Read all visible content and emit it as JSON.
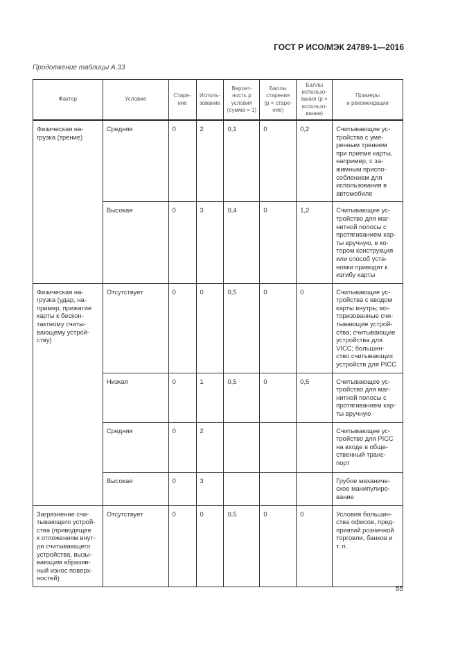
{
  "header": {
    "doc_code": "ГОСТ Р ИСО/МЭК 24789-1—2016"
  },
  "caption": "Продолжение таблицы А.33",
  "table": {
    "columns": [
      "Фактор",
      "Условие",
      "Старе-\nние",
      "Исполь-\nзование",
      "Вероят-\nность p\nусловия\n(сумма = 1)",
      "Баллы\nстарения\n(p × старе-\nние)",
      "Баллы\nиспользо-\nвания (p ×\nиспользо-\nвание)",
      "Примеры\nи рекомендации"
    ],
    "rows": [
      {
        "factor": "Физическая на-\nгрузка (трение)",
        "span": 2,
        "cells": [
          "Средняя",
          "0",
          "2",
          "0,1",
          "0",
          "0,2",
          "Считывающие ус-\nтройства с уме-\nренным трением\nпри приеме карты,\nнапример, с за-\nжимным приспо-\nсоблением для\nиспользования в\nавтомобиле"
        ]
      },
      {
        "cells": [
          "Высокая",
          "0",
          "3",
          "0,4",
          "0",
          "1,2",
          "Считывающее ус-\nтройство для маг-\nнитной полосы с\nпротягиванием кар-\nты вручную, в ко-\nтором конструкция\nили способ уста-\nновки приводят к\nизгибу карты"
        ]
      },
      {
        "factor": "Физическая на-\nгрузка (удар, на-\nпример, прижатие\nкарты к бескон-\nтактному считы-\nвающему устрой-\nству)",
        "span": 4,
        "cells": [
          "Отсутствует",
          "0",
          "0",
          "0,5",
          "0",
          "0",
          "Считывающие ус-\nтройства с вводом\nкарты внутрь; мо-\nторизованные счи-\nтывающие устрой-\nства; считывающие\nустройства для\nVICC; большин-\nство считывающих\nустройств для PICC"
        ]
      },
      {
        "cells": [
          "Низкая",
          "0",
          "1",
          "0,5",
          "0",
          "0,5",
          "Считывающее ус-\nтройство для маг-\nнитной полосы с\nпротягиванием кар-\nты вручную"
        ]
      },
      {
        "cells": [
          "Средняя",
          "0",
          "2",
          "",
          "",
          "",
          "Считывающее ус-\nтройство для PICC\nна входе в обще-\nственный транс-\nпорт"
        ]
      },
      {
        "cells": [
          "Высокая",
          "0",
          "3",
          "",
          "",
          "",
          "Грубое механиче-\nское манипулиро-\nвание"
        ]
      },
      {
        "factor": "Загрязнение счи-\nтывающего устрой-\nства (приводящее\nк отложениям внут-\nри считывающего\nустройства, вызы-\nвающим абразив-\nный износ поверх-\nностей)",
        "span": 1,
        "cells": [
          "Отсутствует",
          "0",
          "0",
          "0,5",
          "0",
          "0",
          "Условия большин-\nства офисов, пред-\nприятий розничной\nторговли, банков и\nт. п."
        ]
      }
    ]
  },
  "page_number": "55"
}
